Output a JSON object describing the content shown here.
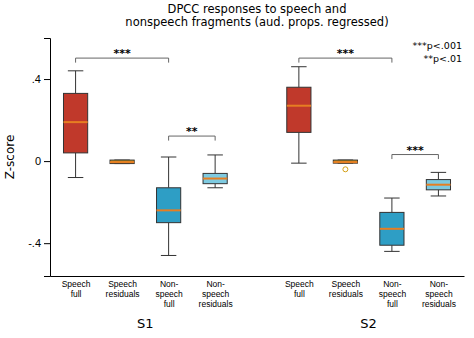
{
  "chart_data": {
    "type": "box",
    "title": "DPCC responses to speech and\nnonspeech fragments (aud. props. regressed)",
    "ylabel": "Z-score",
    "categories": [
      "Speech\nfull",
      "Speech\nresiduals",
      "Non-\nspeech\nfull",
      "Non-\nspeech\nresiduals",
      "Speech\nfull",
      "Speech\nresiduals",
      "Non-\nspeech\nfull",
      "Non-\nspeech\nresiduals"
    ],
    "sections": [
      "S1",
      "S2"
    ],
    "category_sections": [
      "S1",
      "S1",
      "S1",
      "S1",
      "S2",
      "S2",
      "S2",
      "S2"
    ],
    "boxes": [
      {
        "median": 0.19,
        "q1": 0.04,
        "q3": 0.33,
        "whisker_low": -0.08,
        "whisker_high": 0.44
      },
      {
        "median": -0.005,
        "q1": -0.012,
        "q3": 0.005,
        "whisker_low": -0.012,
        "whisker_high": 0.005
      },
      {
        "median": -0.24,
        "q1": -0.3,
        "q3": -0.13,
        "whisker_low": -0.46,
        "whisker_high": 0.02
      },
      {
        "median": -0.085,
        "q1": -0.11,
        "q3": -0.06,
        "whisker_low": -0.13,
        "whisker_high": 0.03
      },
      {
        "median": 0.27,
        "q1": 0.14,
        "q3": 0.36,
        "whisker_low": -0.01,
        "whisker_high": 0.46
      },
      {
        "median": -0.005,
        "q1": -0.01,
        "q3": 0.005,
        "whisker_low": -0.01,
        "whisker_high": 0.005,
        "outlier": -0.04
      },
      {
        "median": -0.33,
        "q1": -0.41,
        "q3": -0.25,
        "whisker_low": -0.44,
        "whisker_high": -0.18
      },
      {
        "median": -0.115,
        "q1": -0.14,
        "q3": -0.09,
        "whisker_low": -0.17,
        "whisker_high": -0.055
      }
    ],
    "colors": [
      "#c0392b",
      "#d4a017",
      "#2e9ec5",
      "#7ecae0",
      "#c0392b",
      "#d4a017",
      "#2e9ec5",
      "#7ecae0"
    ],
    "median_color": "#e67e22",
    "annotations": [
      {
        "text": "***",
        "from": 0,
        "to": 2,
        "y": 0.48
      },
      {
        "text": "**",
        "from": 2,
        "to": 3,
        "y": 0.1
      },
      {
        "text": "***",
        "from": 4,
        "to": 6,
        "y": 0.48
      },
      {
        "text": "***",
        "from": 6,
        "to": 7,
        "y": 0.01
      }
    ],
    "legend_text": [
      "***p<.001",
      "**p<.01"
    ],
    "ylim": [
      -0.56,
      0.6
    ],
    "yticks": [
      {
        "value": -0.4,
        "label": "-.4"
      },
      0,
      {
        "value": 0.4,
        "label": ".4"
      }
    ]
  }
}
